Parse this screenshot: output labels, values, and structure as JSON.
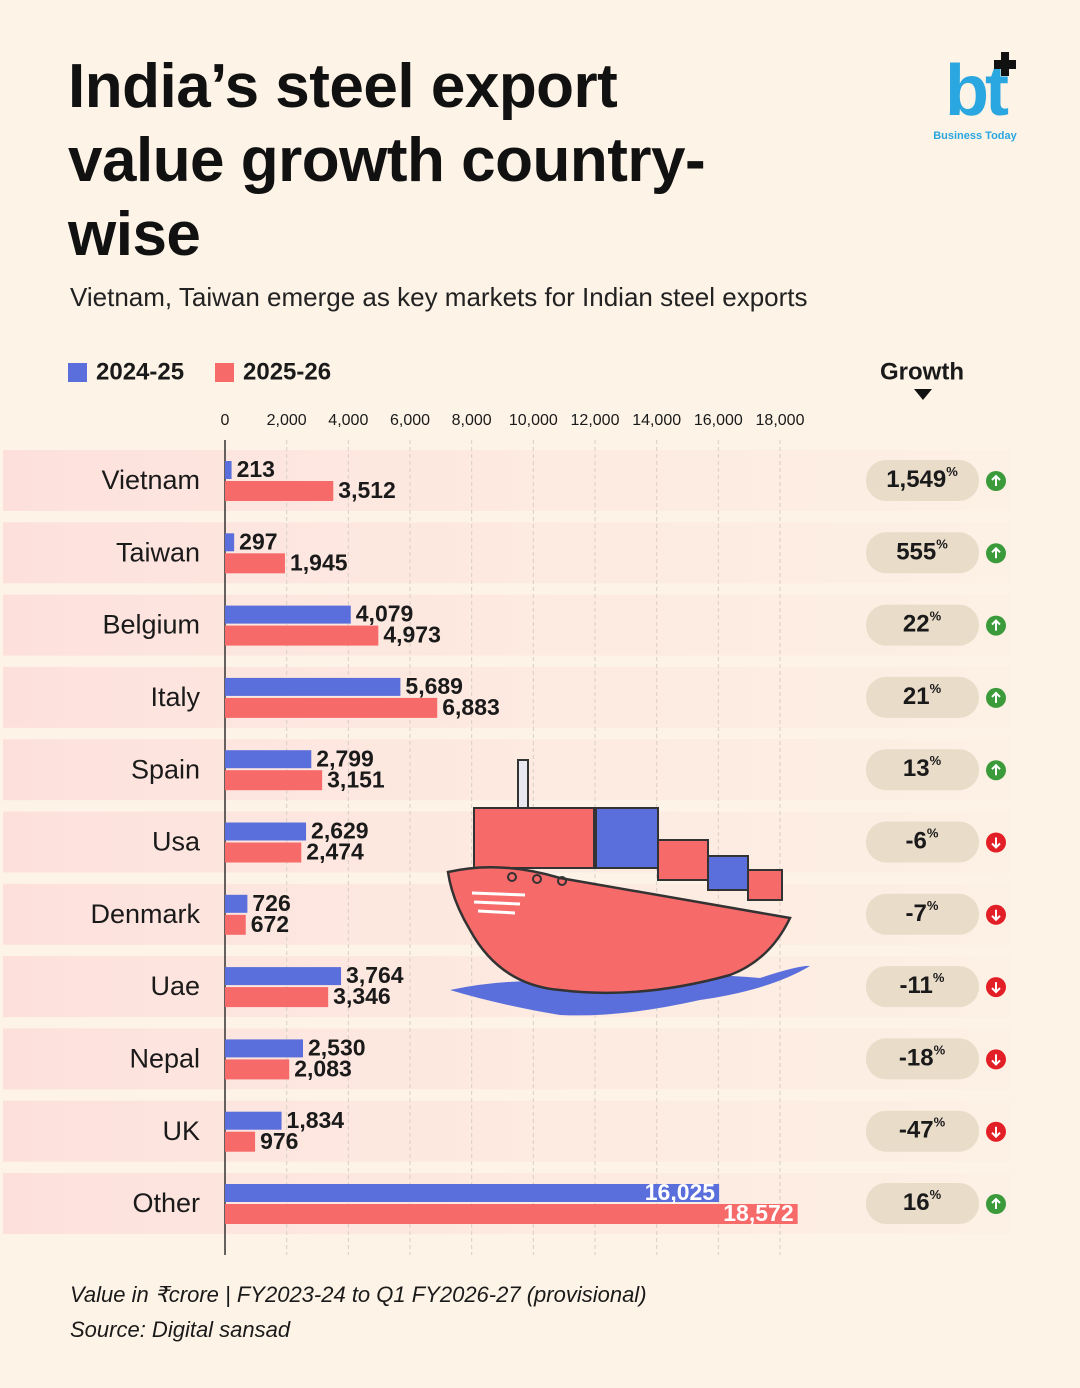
{
  "chart_data": {
    "type": "bar",
    "orientation": "horizontal",
    "title": "India’s steel export value growth country-wise",
    "subtitle": "Vietnam, Taiwan emerge as key markets for Indian steel exports",
    "brand": {
      "mark": "bt",
      "name": "Business Today"
    },
    "categories": [
      "Vietnam",
      "Taiwan",
      "Belgium",
      "Italy",
      "Spain",
      "Usa",
      "Denmark",
      "Uae",
      "Nepal",
      "UK",
      "Other"
    ],
    "series": [
      {
        "name": "2024-25",
        "color": "#5a6fdc",
        "values": [
          213,
          297,
          4079,
          5689,
          2799,
          2629,
          726,
          3764,
          2530,
          1834,
          16025
        ],
        "value_labels": [
          "213",
          "297",
          "4,079",
          "5,689",
          "2,799",
          "2,629",
          "726",
          "3,764",
          "2,530",
          "1,834",
          "16,025"
        ]
      },
      {
        "name": "2025-26",
        "color": "#f76a6a",
        "values": [
          3512,
          1945,
          4973,
          6883,
          3151,
          2474,
          672,
          3346,
          2083,
          976,
          18572
        ],
        "value_labels": [
          "3,512",
          "1,945",
          "4,973",
          "6,883",
          "3,151",
          "2,474",
          "672",
          "3,346",
          "2,083",
          "976",
          "18,572"
        ]
      }
    ],
    "xlim": [
      0,
      18000
    ],
    "xticks": [
      0,
      {
        "value": 2000,
        "label": "2,000"
      },
      {
        "value": 4000,
        "label": "4,000"
      },
      {
        "value": 6000,
        "label": "6,000"
      },
      {
        "value": 8000,
        "label": "8,000"
      },
      {
        "value": 10000,
        "label": "10,000"
      },
      {
        "value": 12000,
        "label": "12,000"
      },
      {
        "value": 14000,
        "label": "14,000"
      },
      {
        "value": 16000,
        "label": "16,000"
      },
      {
        "value": 18000,
        "label": "18,000"
      }
    ],
    "grid": true,
    "legend": "top-left",
    "growth": {
      "title": "Growth",
      "unit": "%",
      "values": [
        1549,
        555,
        22,
        21,
        13,
        -6,
        -7,
        -11,
        -18,
        -47,
        16
      ],
      "value_labels": [
        "1,549",
        "555",
        "22",
        "21",
        "13",
        "-6",
        "-7",
        "-11",
        "-18",
        "-47",
        "16"
      ],
      "up_color": "#3b9b3b",
      "down_color": "#e21f26"
    },
    "notes": [
      "Value in ₹crore | FY2023-24 to Q1 FY2026-27 (provisional)",
      "Source: Digital sansad"
    ]
  }
}
